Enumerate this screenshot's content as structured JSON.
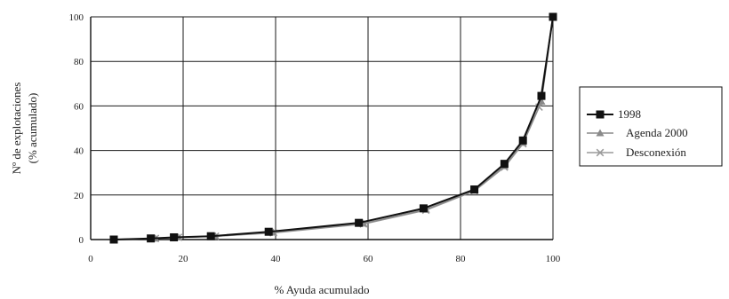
{
  "chart_data": {
    "type": "line",
    "xlabel": "% Ayuda acumulado",
    "ylabel_lines": [
      "Nº de explotaciones",
      "(% acumulado)"
    ],
    "xlim": [
      0,
      100
    ],
    "ylim": [
      0,
      100
    ],
    "x_ticks": [
      "0",
      "20",
      "40",
      "60",
      "80",
      "100"
    ],
    "y_ticks": [
      "0",
      "20",
      "40",
      "60",
      "80",
      "100"
    ],
    "grid": true,
    "legend_position": "right",
    "series": [
      {
        "name": "1998",
        "marker": "square",
        "color": "#111111",
        "points": [
          [
            5,
            0
          ],
          [
            13,
            0.5
          ],
          [
            18,
            1
          ],
          [
            26,
            1.5
          ],
          [
            38.5,
            3.5
          ],
          [
            58,
            7.5
          ],
          [
            72,
            14
          ],
          [
            83,
            22.5
          ],
          [
            89.5,
            34
          ],
          [
            93.5,
            44.5
          ],
          [
            97.5,
            64.5
          ],
          [
            100,
            100
          ]
        ]
      },
      {
        "name": "Agenda 2000",
        "marker": "triangle",
        "color": "#8a8a8a",
        "points": [
          [
            5,
            0
          ],
          [
            14,
            0.5
          ],
          [
            19,
            1
          ],
          [
            27,
            1.5
          ],
          [
            39.5,
            3.2
          ],
          [
            59,
            7.2
          ],
          [
            72.5,
            13.5
          ],
          [
            83,
            22
          ],
          [
            89.5,
            33
          ],
          [
            93.5,
            43.5
          ],
          [
            97.5,
            62
          ],
          [
            100,
            100
          ]
        ]
      },
      {
        "name": "Desconexión",
        "marker": "x",
        "color": "#9a9a9a",
        "points": [
          [
            5,
            0
          ],
          [
            14,
            0.5
          ],
          [
            19,
            1
          ],
          [
            27,
            1.5
          ],
          [
            39.5,
            3
          ],
          [
            59,
            7
          ],
          [
            72.5,
            13.2
          ],
          [
            83,
            21.8
          ],
          [
            89.5,
            32.5
          ],
          [
            93.5,
            43
          ],
          [
            97,
            59.5
          ],
          [
            100,
            100
          ]
        ]
      }
    ]
  }
}
